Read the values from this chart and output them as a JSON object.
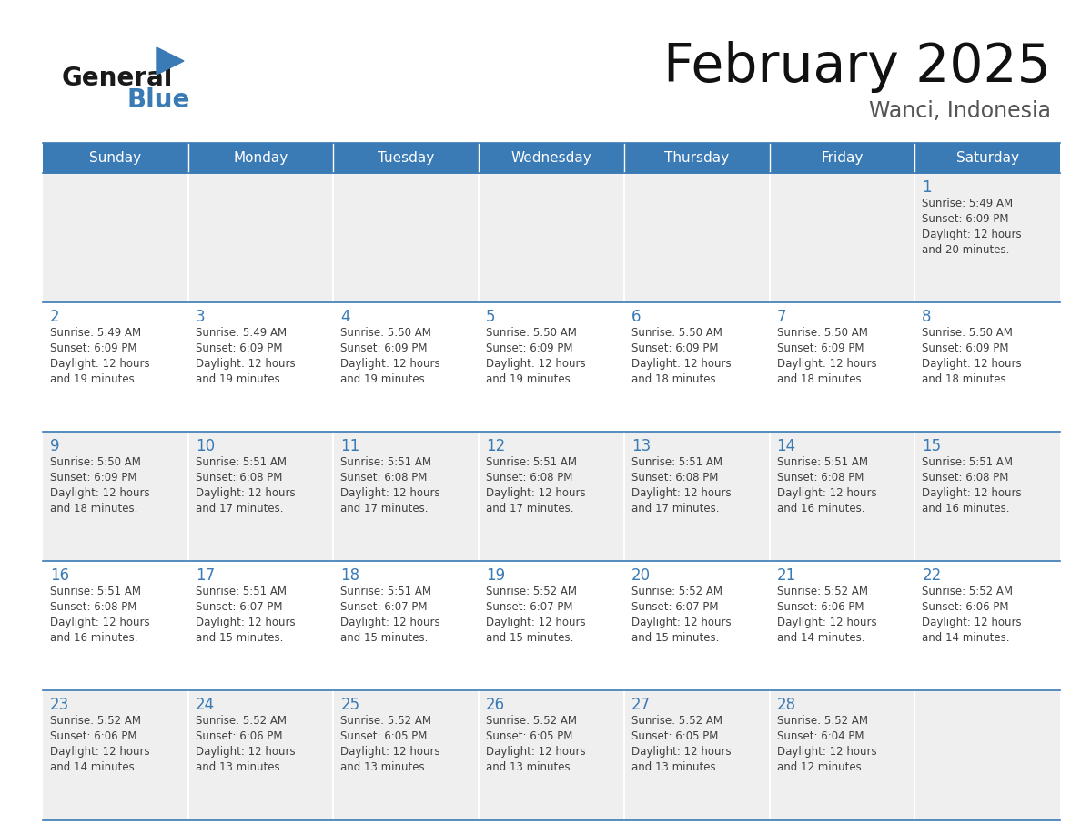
{
  "title": "February 2025",
  "subtitle": "Wanci, Indonesia",
  "header_color": "#3a7ab5",
  "header_text_color": "#ffffff",
  "day_headers": [
    "Sunday",
    "Monday",
    "Tuesday",
    "Wednesday",
    "Thursday",
    "Friday",
    "Saturday"
  ],
  "bg_color": "#ffffff",
  "cell_bg_even": "#efefef",
  "cell_bg_odd": "#ffffff",
  "day_num_color": "#3a7ab5",
  "text_color": "#404040",
  "line_color": "#3a7ab5",
  "logo_general_color": "#1a1a1a",
  "logo_blue_color": "#3a7ab5",
  "logo_triangle_color": "#3a7ab5",
  "calendar": [
    [
      {
        "day": null,
        "sunrise": null,
        "sunset": null,
        "daylight": null
      },
      {
        "day": null,
        "sunrise": null,
        "sunset": null,
        "daylight": null
      },
      {
        "day": null,
        "sunrise": null,
        "sunset": null,
        "daylight": null
      },
      {
        "day": null,
        "sunrise": null,
        "sunset": null,
        "daylight": null
      },
      {
        "day": null,
        "sunrise": null,
        "sunset": null,
        "daylight": null
      },
      {
        "day": null,
        "sunrise": null,
        "sunset": null,
        "daylight": null
      },
      {
        "day": 1,
        "sunrise": "5:49 AM",
        "sunset": "6:09 PM",
        "daylight": "12 hours and 20 minutes."
      }
    ],
    [
      {
        "day": 2,
        "sunrise": "5:49 AM",
        "sunset": "6:09 PM",
        "daylight": "12 hours and 19 minutes."
      },
      {
        "day": 3,
        "sunrise": "5:49 AM",
        "sunset": "6:09 PM",
        "daylight": "12 hours and 19 minutes."
      },
      {
        "day": 4,
        "sunrise": "5:50 AM",
        "sunset": "6:09 PM",
        "daylight": "12 hours and 19 minutes."
      },
      {
        "day": 5,
        "sunrise": "5:50 AM",
        "sunset": "6:09 PM",
        "daylight": "12 hours and 19 minutes."
      },
      {
        "day": 6,
        "sunrise": "5:50 AM",
        "sunset": "6:09 PM",
        "daylight": "12 hours and 18 minutes."
      },
      {
        "day": 7,
        "sunrise": "5:50 AM",
        "sunset": "6:09 PM",
        "daylight": "12 hours and 18 minutes."
      },
      {
        "day": 8,
        "sunrise": "5:50 AM",
        "sunset": "6:09 PM",
        "daylight": "12 hours and 18 minutes."
      }
    ],
    [
      {
        "day": 9,
        "sunrise": "5:50 AM",
        "sunset": "6:09 PM",
        "daylight": "12 hours and 18 minutes."
      },
      {
        "day": 10,
        "sunrise": "5:51 AM",
        "sunset": "6:08 PM",
        "daylight": "12 hours and 17 minutes."
      },
      {
        "day": 11,
        "sunrise": "5:51 AM",
        "sunset": "6:08 PM",
        "daylight": "12 hours and 17 minutes."
      },
      {
        "day": 12,
        "sunrise": "5:51 AM",
        "sunset": "6:08 PM",
        "daylight": "12 hours and 17 minutes."
      },
      {
        "day": 13,
        "sunrise": "5:51 AM",
        "sunset": "6:08 PM",
        "daylight": "12 hours and 17 minutes."
      },
      {
        "day": 14,
        "sunrise": "5:51 AM",
        "sunset": "6:08 PM",
        "daylight": "12 hours and 16 minutes."
      },
      {
        "day": 15,
        "sunrise": "5:51 AM",
        "sunset": "6:08 PM",
        "daylight": "12 hours and 16 minutes."
      }
    ],
    [
      {
        "day": 16,
        "sunrise": "5:51 AM",
        "sunset": "6:08 PM",
        "daylight": "12 hours and 16 minutes."
      },
      {
        "day": 17,
        "sunrise": "5:51 AM",
        "sunset": "6:07 PM",
        "daylight": "12 hours and 15 minutes."
      },
      {
        "day": 18,
        "sunrise": "5:51 AM",
        "sunset": "6:07 PM",
        "daylight": "12 hours and 15 minutes."
      },
      {
        "day": 19,
        "sunrise": "5:52 AM",
        "sunset": "6:07 PM",
        "daylight": "12 hours and 15 minutes."
      },
      {
        "day": 20,
        "sunrise": "5:52 AM",
        "sunset": "6:07 PM",
        "daylight": "12 hours and 15 minutes."
      },
      {
        "day": 21,
        "sunrise": "5:52 AM",
        "sunset": "6:06 PM",
        "daylight": "12 hours and 14 minutes."
      },
      {
        "day": 22,
        "sunrise": "5:52 AM",
        "sunset": "6:06 PM",
        "daylight": "12 hours and 14 minutes."
      }
    ],
    [
      {
        "day": 23,
        "sunrise": "5:52 AM",
        "sunset": "6:06 PM",
        "daylight": "12 hours and 14 minutes."
      },
      {
        "day": 24,
        "sunrise": "5:52 AM",
        "sunset": "6:06 PM",
        "daylight": "12 hours and 13 minutes."
      },
      {
        "day": 25,
        "sunrise": "5:52 AM",
        "sunset": "6:05 PM",
        "daylight": "12 hours and 13 minutes."
      },
      {
        "day": 26,
        "sunrise": "5:52 AM",
        "sunset": "6:05 PM",
        "daylight": "12 hours and 13 minutes."
      },
      {
        "day": 27,
        "sunrise": "5:52 AM",
        "sunset": "6:05 PM",
        "daylight": "12 hours and 13 minutes."
      },
      {
        "day": 28,
        "sunrise": "5:52 AM",
        "sunset": "6:04 PM",
        "daylight": "12 hours and 12 minutes."
      },
      {
        "day": null,
        "sunrise": null,
        "sunset": null,
        "daylight": null
      }
    ]
  ]
}
